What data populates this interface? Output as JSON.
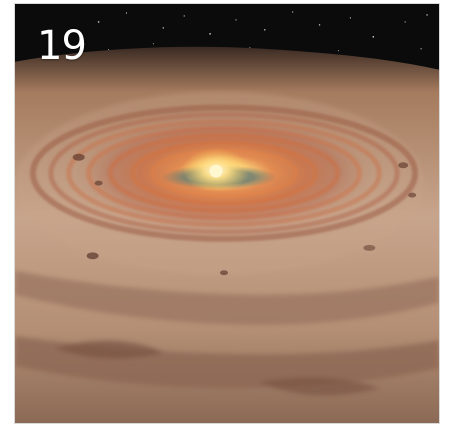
{
  "image": {
    "badge_number": "19",
    "subject": "protoplanetary-disk",
    "colors": {
      "space": "#0b0b0c",
      "dust_light": "#c6a38a",
      "dust_mid": "#a47a5d",
      "dust_dark": "#5b3a2a",
      "ring_orange": "#d06a3a",
      "core_glow": "#ffd98a",
      "core_white": "#fff7cf",
      "disk_teal": "#6e8a7a"
    }
  }
}
